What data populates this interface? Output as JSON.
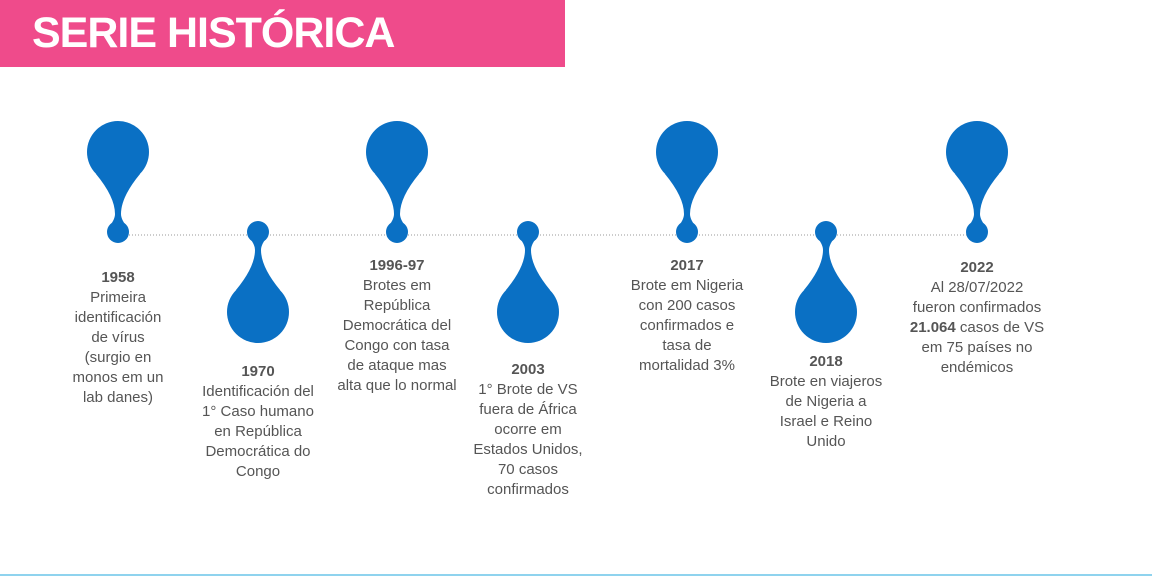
{
  "header": {
    "title": "SERIE HISTÓRICA"
  },
  "events": [
    {
      "year": "1958",
      "lines": [
        "Primeira",
        "identificación",
        "de vírus",
        "(surgio en",
        "monos em un",
        "lab danes)"
      ]
    },
    {
      "year": "1970",
      "lines": [
        "Identificación del",
        "1° Caso humano",
        "en República",
        "Democrática do",
        "Congo"
      ]
    },
    {
      "year": "1996-97",
      "lines": [
        "Brotes em",
        "República",
        "Democrática del",
        "Congo con tasa",
        "de ataque mas",
        "alta que lo normal"
      ]
    },
    {
      "year": "2003",
      "lines": [
        "1° Brote de VS",
        "fuera de África",
        "ocorre em",
        "Estados Unidos,",
        "70 casos",
        "confirmados"
      ]
    },
    {
      "year": "2017",
      "lines": [
        "Brote em Nigeria",
        "con 200 casos",
        "confirmados e",
        "tasa de",
        "mortalidad 3%"
      ]
    },
    {
      "year": "2018",
      "lines": [
        "Brote en viajeros",
        "de Nigeria a",
        "Israel e Reino",
        "Unido"
      ]
    },
    {
      "year": "2022",
      "lines": [
        "Al 28/07/2022",
        "fueron confirmados",
        {
          "bold": "21.064",
          "text": " casos de VS"
        },
        "em 75 países no",
        "endémicos"
      ]
    }
  ]
}
